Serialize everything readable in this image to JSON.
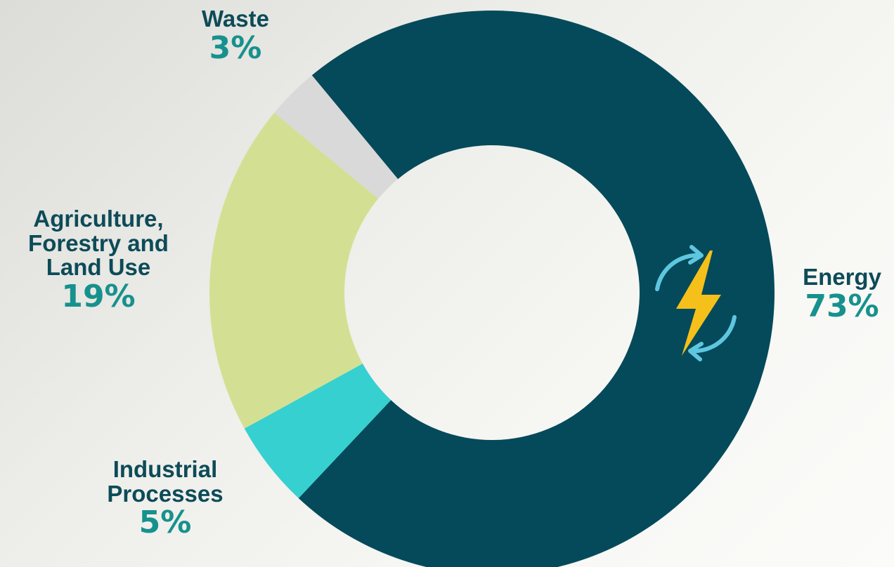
{
  "chart_data": {
    "type": "donut",
    "categories": [
      "Energy",
      "Industrial Processes",
      "Agriculture, Forestry and Land Use",
      "Waste"
    ],
    "values": [
      73,
      5,
      19,
      3
    ],
    "value_labels": [
      "73%",
      "5%",
      "19%",
      "3%"
    ],
    "colors": [
      "#044a5a",
      "#36d0d0",
      "#d3e093",
      "#d9d9d9"
    ]
  }
}
